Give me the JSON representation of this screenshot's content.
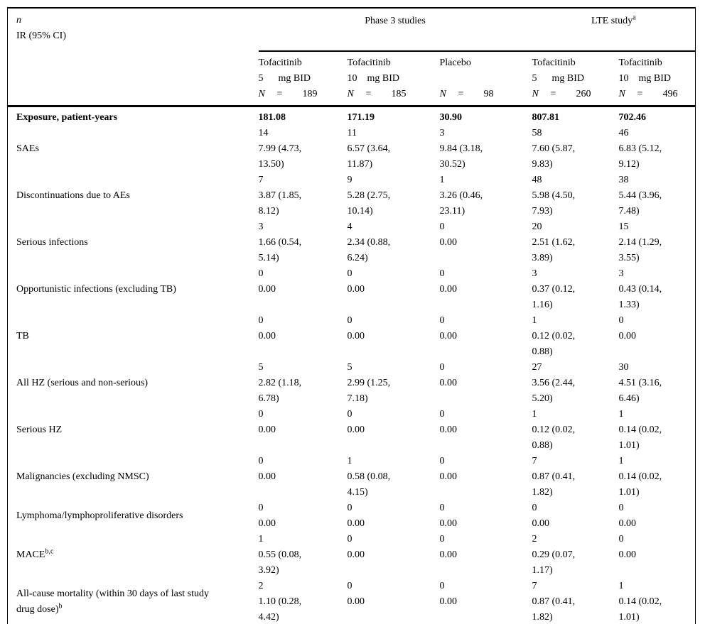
{
  "colors": {
    "text": "#000000",
    "background": "#ffffff",
    "rule": "#000000"
  },
  "table": {
    "stub": {
      "line1": "n",
      "line2": "IR (95% CI)"
    },
    "groups": [
      {
        "label": "Phase 3 studies",
        "sup": ""
      },
      {
        "label": "LTE study",
        "sup": "a"
      }
    ],
    "n_label": "N",
    "eq_sign": "=",
    "columns": [
      {
        "drug": "Tofacitinib",
        "dose": "5",
        "unit": "mg BID",
        "n": "189"
      },
      {
        "drug": "Tofacitinib",
        "dose": "10",
        "unit": "mg BID",
        "n": "185"
      },
      {
        "drug": "Placebo",
        "dose": "",
        "unit": "",
        "n": "98"
      },
      {
        "drug": "Tofacitinib",
        "dose": "5",
        "unit": "mg BID",
        "n": "260"
      },
      {
        "drug": "Tofacitinib",
        "dose": "10",
        "unit": "mg BID",
        "n": "496"
      }
    ],
    "exposure": {
      "label": "Exposure, patient-years",
      "values": [
        "181.08",
        "171.19",
        "30.90",
        "807.81",
        "702.46"
      ]
    },
    "rows": [
      {
        "label": "SAEs",
        "sup": "",
        "cells": [
          {
            "n": "14",
            "ir": [
              "7.99 (4.73,",
              "13.50)"
            ]
          },
          {
            "n": "11",
            "ir": [
              "6.57 (3.64,",
              "11.87)"
            ]
          },
          {
            "n": "3",
            "ir": [
              "9.84 (3.18,",
              "30.52)"
            ]
          },
          {
            "n": "58",
            "ir": [
              "7.60 (5.87,",
              "9.83)"
            ]
          },
          {
            "n": "46",
            "ir": [
              "6.83 (5.12,",
              "9.12)"
            ]
          }
        ]
      },
      {
        "label": "Discontinuations due to AEs",
        "sup": "",
        "cells": [
          {
            "n": "7",
            "ir": [
              "3.87 (1.85,",
              "8.12)"
            ]
          },
          {
            "n": "9",
            "ir": [
              "5.28 (2.75,",
              "10.14)"
            ]
          },
          {
            "n": "1",
            "ir": [
              "3.26 (0.46,",
              "23.11)"
            ]
          },
          {
            "n": "48",
            "ir": [
              "5.98 (4.50,",
              "7.93)"
            ]
          },
          {
            "n": "38",
            "ir": [
              "5.44 (3.96,",
              "7.48)"
            ]
          }
        ]
      },
      {
        "label": "Serious infections",
        "sup": "",
        "cells": [
          {
            "n": "3",
            "ir": [
              "1.66 (0.54,",
              "5.14)"
            ]
          },
          {
            "n": "4",
            "ir": [
              "2.34 (0.88,",
              "6.24)"
            ]
          },
          {
            "n": "0",
            "ir": [
              "0.00"
            ]
          },
          {
            "n": "20",
            "ir": [
              "2.51 (1.62,",
              "3.89)"
            ]
          },
          {
            "n": "15",
            "ir": [
              "2.14 (1.29,",
              "3.55)"
            ]
          }
        ]
      },
      {
        "label": "Opportunistic infections (excluding TB)",
        "sup": "",
        "cells": [
          {
            "n": "0",
            "ir": [
              "0.00"
            ]
          },
          {
            "n": "0",
            "ir": [
              "0.00"
            ]
          },
          {
            "n": "0",
            "ir": [
              "0.00"
            ]
          },
          {
            "n": "3",
            "ir": [
              "0.37 (0.12,",
              "1.16)"
            ]
          },
          {
            "n": "3",
            "ir": [
              "0.43 (0.14,",
              "1.33)"
            ]
          }
        ]
      },
      {
        "label": "TB",
        "sup": "",
        "cells": [
          {
            "n": "0",
            "ir": [
              "0.00"
            ]
          },
          {
            "n": "0",
            "ir": [
              "0.00"
            ]
          },
          {
            "n": "0",
            "ir": [
              "0.00"
            ]
          },
          {
            "n": "1",
            "ir": [
              "0.12 (0.02,",
              "0.88)"
            ]
          },
          {
            "n": "0",
            "ir": [
              "0.00"
            ]
          }
        ]
      },
      {
        "label": "All HZ (serious and non-serious)",
        "sup": "",
        "cells": [
          {
            "n": "5",
            "ir": [
              "2.82 (1.18,",
              "6.78)"
            ]
          },
          {
            "n": "5",
            "ir": [
              "2.99 (1.25,",
              "7.18)"
            ]
          },
          {
            "n": "0",
            "ir": [
              "0.00"
            ]
          },
          {
            "n": "27",
            "ir": [
              "3.56 (2.44,",
              "5.20)"
            ]
          },
          {
            "n": "30",
            "ir": [
              "4.51 (3.16,",
              "6.46)"
            ]
          }
        ]
      },
      {
        "label": "Serious HZ",
        "sup": "",
        "cells": [
          {
            "n": "0",
            "ir": [
              "0.00"
            ]
          },
          {
            "n": "0",
            "ir": [
              "0.00"
            ]
          },
          {
            "n": "0",
            "ir": [
              "0.00"
            ]
          },
          {
            "n": "1",
            "ir": [
              "0.12 (0.02,",
              "0.88)"
            ]
          },
          {
            "n": "1",
            "ir": [
              "0.14 (0.02,",
              "1.01)"
            ]
          }
        ]
      },
      {
        "label": "Malignancies (excluding NMSC)",
        "sup": "",
        "cells": [
          {
            "n": "0",
            "ir": [
              "0.00"
            ]
          },
          {
            "n": "1",
            "ir": [
              "0.58 (0.08,",
              "4.15)"
            ]
          },
          {
            "n": "0",
            "ir": [
              "0.00"
            ]
          },
          {
            "n": "7",
            "ir": [
              "0.87 (0.41,",
              "1.82)"
            ]
          },
          {
            "n": "1",
            "ir": [
              "0.14 (0.02,",
              "1.01)"
            ]
          }
        ]
      },
      {
        "label": "Lymphoma/lymphoproliferative disorders",
        "sup": "",
        "cells": [
          {
            "n": "0",
            "ir": [
              "0.00"
            ]
          },
          {
            "n": "0",
            "ir": [
              "0.00"
            ]
          },
          {
            "n": "0",
            "ir": [
              "0.00"
            ]
          },
          {
            "n": "0",
            "ir": [
              "0.00"
            ]
          },
          {
            "n": "0",
            "ir": [
              "0.00"
            ]
          }
        ]
      },
      {
        "label": "MACE",
        "sup": "b,c",
        "cells": [
          {
            "n": "1",
            "ir": [
              "0.55 (0.08,",
              "3.92)"
            ]
          },
          {
            "n": "0",
            "ir": [
              "0.00"
            ]
          },
          {
            "n": "0",
            "ir": [
              "0.00"
            ]
          },
          {
            "n": "2",
            "ir": [
              "0.29 (0.07,",
              "1.17)"
            ]
          },
          {
            "n": "0",
            "ir": [
              "0.00"
            ]
          }
        ]
      },
      {
        "label": "All-cause mortality (within 30 days of last study drug dose)",
        "sup": "b",
        "cells": [
          {
            "n": "2",
            "ir": [
              "1.10 (0.28,",
              "4.42)"
            ]
          },
          {
            "n": "0",
            "ir": [
              "0.00"
            ]
          },
          {
            "n": "0",
            "ir": [
              "0.00"
            ]
          },
          {
            "n": "7",
            "ir": [
              "0.87 (0.41,",
              "1.82)"
            ]
          },
          {
            "n": "1",
            "ir": [
              "0.14 (0.02,",
              "1.01)"
            ]
          }
        ]
      }
    ]
  }
}
